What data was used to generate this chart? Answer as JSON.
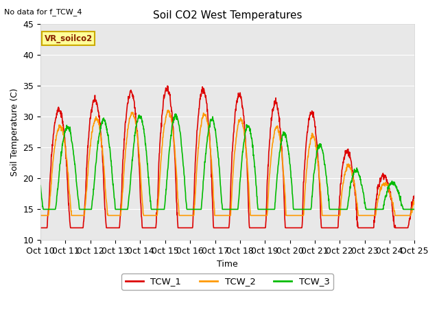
{
  "title": "Soil CO2 West Temperatures",
  "no_data_label": "No data for f_TCW_4",
  "vr_label": "VR_soilco2",
  "xlabel": "Time",
  "ylabel": "Soil Temperature (C)",
  "ylim": [
    10,
    45
  ],
  "xlim": [
    10,
    25
  ],
  "xtick_vals": [
    10,
    11,
    12,
    13,
    14,
    15,
    16,
    17,
    18,
    19,
    20,
    21,
    22,
    23,
    24,
    25
  ],
  "xtick_labels": [
    "Oct 10",
    "0ct 11",
    "0ct 12",
    "0ct 13",
    "0ct 14",
    "0ct 15",
    "0ct 16",
    "0ct 17",
    "0ct 18",
    "0ct 19",
    "0ct 20",
    "0ct 21",
    "0ct 22",
    "0ct 23",
    "0ct 24",
    "Oct 25"
  ],
  "ytick_vals": [
    10,
    15,
    20,
    25,
    30,
    35,
    40,
    45
  ],
  "colors": {
    "TCW_1": "#dd0000",
    "TCW_2": "#ff9900",
    "TCW_3": "#00bb00"
  },
  "linewidth": 1.2,
  "background_color": "#ffffff",
  "axes_background": "#e8e8e8",
  "grid_color": "#ffffff",
  "vr_box_facecolor": "#ffff99",
  "vr_box_edgecolor": "#ccaa00",
  "vr_text_color": "#8B2500"
}
